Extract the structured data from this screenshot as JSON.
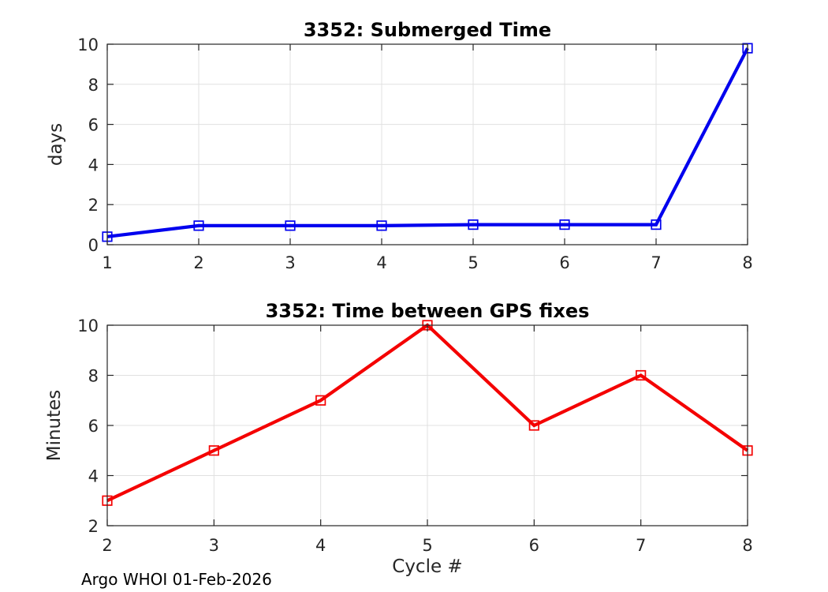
{
  "figure": {
    "background": "#ffffff",
    "footer": "Argo WHOI 01-Feb-2026"
  },
  "colors": {
    "axis": "#262626",
    "grid": "#e0e0e0",
    "tick_label": "#262626",
    "title": "#000000",
    "blue_series": "#0000ee",
    "red_series": "#f40000"
  },
  "chart_data": [
    {
      "type": "line",
      "series_name": "submerged-time",
      "title": "3352: Submerged Time",
      "xlabel": "",
      "ylabel": "days",
      "x": [
        1,
        2,
        3,
        4,
        5,
        6,
        7,
        8
      ],
      "values": [
        0.4,
        0.95,
        0.95,
        0.95,
        1.0,
        1.0,
        1.0,
        9.8
      ],
      "xlim": [
        1,
        8
      ],
      "ylim": [
        0,
        10
      ],
      "xticks": [
        "1",
        "2",
        "3",
        "4",
        "5",
        "6",
        "7",
        "8"
      ],
      "yticks": [
        "0",
        "2",
        "4",
        "6",
        "8",
        "10"
      ],
      "xtick_vals": [
        1,
        2,
        3,
        4,
        5,
        6,
        7,
        8
      ],
      "ytick_vals": [
        0,
        2,
        4,
        6,
        8,
        10
      ],
      "grid": true,
      "line_color": "#0000ee",
      "marker": "square-hollow"
    },
    {
      "type": "line",
      "series_name": "gps-fix-interval",
      "title": "3352: Time between GPS fixes",
      "xlabel": "Cycle #",
      "ylabel": "Minutes",
      "x": [
        2,
        3,
        4,
        5,
        6,
        7,
        8
      ],
      "values": [
        3,
        5,
        7,
        10,
        6,
        8,
        5
      ],
      "xlim": [
        2,
        8
      ],
      "ylim": [
        2,
        10
      ],
      "xticks": [
        "2",
        "3",
        "4",
        "5",
        "6",
        "7",
        "8"
      ],
      "yticks": [
        "2",
        "4",
        "6",
        "8",
        "10"
      ],
      "xtick_vals": [
        2,
        3,
        4,
        5,
        6,
        7,
        8
      ],
      "ytick_vals": [
        2,
        4,
        6,
        8,
        10
      ],
      "grid": true,
      "line_color": "#f40000",
      "marker": "square-hollow"
    }
  ]
}
